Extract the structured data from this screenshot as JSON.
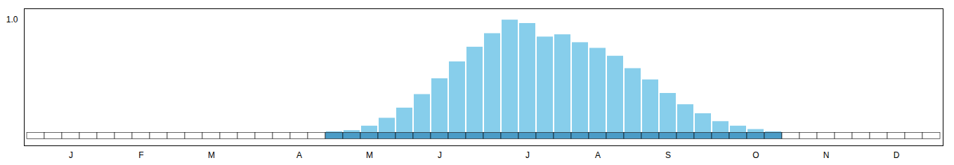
{
  "chart_data": {
    "type": "bar",
    "categories": [
      null,
      null,
      "J",
      null,
      null,
      null,
      "F",
      null,
      null,
      null,
      "M",
      null,
      null,
      null,
      null,
      "A",
      null,
      null,
      null,
      "M",
      null,
      null,
      null,
      "J",
      null,
      null,
      null,
      null,
      "J",
      null,
      null,
      null,
      "A",
      null,
      null,
      null,
      "S",
      null,
      null,
      null,
      null,
      "O",
      null,
      null,
      null,
      "N",
      null,
      null,
      null,
      "D",
      null,
      null
    ],
    "values": [
      0,
      0,
      0,
      0,
      0,
      0,
      0,
      0,
      0,
      0,
      0,
      0,
      0,
      0,
      0,
      0,
      0,
      0.01,
      0.02,
      0.06,
      0.13,
      0.22,
      0.34,
      0.48,
      0.63,
      0.76,
      0.88,
      1.0,
      0.97,
      0.85,
      0.87,
      0.8,
      0.75,
      0.68,
      0.57,
      0.47,
      0.35,
      0.25,
      0.17,
      0.1,
      0.06,
      0.03,
      0.01,
      0,
      0,
      0,
      0,
      0,
      0,
      0,
      0,
      0
    ],
    "active": [
      false,
      false,
      false,
      false,
      false,
      false,
      false,
      false,
      false,
      false,
      false,
      false,
      false,
      false,
      false,
      false,
      false,
      true,
      true,
      true,
      true,
      true,
      true,
      true,
      true,
      true,
      true,
      true,
      true,
      true,
      true,
      true,
      true,
      true,
      true,
      true,
      true,
      true,
      true,
      true,
      true,
      true,
      true,
      false,
      false,
      false,
      false,
      false,
      false,
      false,
      false,
      false
    ],
    "color": "#87CEEB",
    "ylim": [
      -0.115,
      1.1
    ],
    "yticks": [
      1
    ],
    "grid": false
  }
}
